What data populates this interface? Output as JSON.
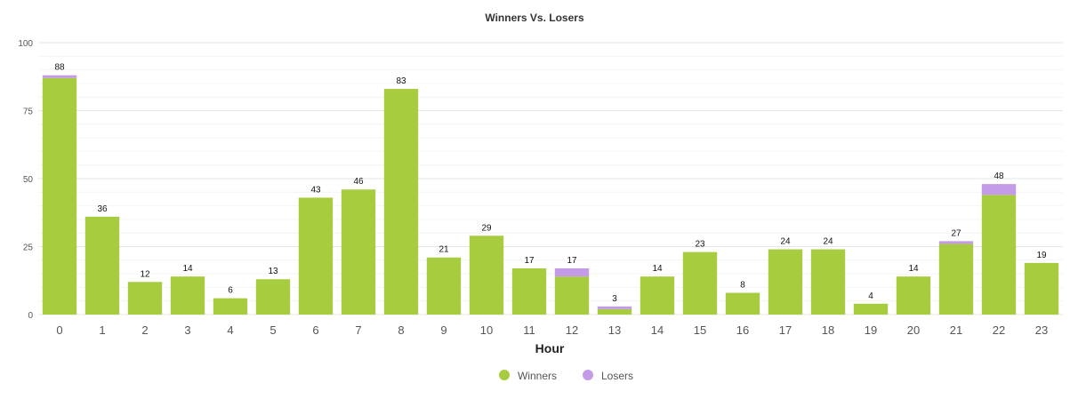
{
  "chart_data": {
    "type": "bar",
    "stacked": true,
    "title": "Winners Vs. Losers",
    "xlabel": "Hour",
    "ylabel": "",
    "ylim": [
      0,
      100
    ],
    "yticks": [
      0,
      25,
      50,
      75,
      100
    ],
    "grid": true,
    "legend_position": "bottom",
    "categories": [
      "0",
      "1",
      "2",
      "3",
      "4",
      "5",
      "6",
      "7",
      "8",
      "9",
      "10",
      "11",
      "12",
      "13",
      "14",
      "15",
      "16",
      "17",
      "18",
      "19",
      "20",
      "21",
      "22",
      "23"
    ],
    "series": [
      {
        "name": "Winners",
        "color": "#a8cc3f",
        "values": [
          87,
          36,
          12,
          14,
          6,
          13,
          43,
          46,
          83,
          21,
          29,
          17,
          14,
          2,
          14,
          23,
          8,
          24,
          24,
          4,
          14,
          26,
          44,
          19
        ]
      },
      {
        "name": "Losers",
        "color": "#c39be6",
        "values": [
          1,
          0,
          0,
          0,
          0,
          0,
          0,
          0,
          0,
          0,
          0,
          0,
          3,
          1,
          0,
          0,
          0,
          0,
          0,
          0,
          0,
          1,
          4,
          0
        ]
      }
    ],
    "totals": [
      88,
      36,
      12,
      14,
      6,
      13,
      43,
      46,
      83,
      21,
      29,
      17,
      17,
      3,
      14,
      23,
      8,
      24,
      24,
      4,
      14,
      27,
      48,
      19
    ]
  }
}
